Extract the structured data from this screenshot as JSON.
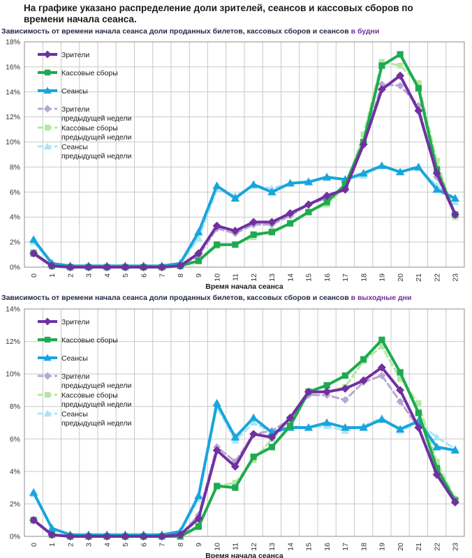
{
  "page": {
    "title": "На графике указано распределение доли зрителей, сеансов и кассовых сборов по времени начала сеанса."
  },
  "chart_data": [
    {
      "type": "line",
      "title": "Зависимость от времени начала сеанса доли проданных билетов, кассовых сборов и сеансов",
      "title_highlight": "в будни",
      "xlabel": "Время начала сеанса",
      "ylabel": "",
      "ylim": [
        0,
        18
      ],
      "yticks": [
        0,
        2,
        4,
        6,
        8,
        10,
        12,
        14,
        16,
        18
      ],
      "ytick_labels": [
        "0%",
        "2%",
        "4%",
        "6%",
        "8%",
        "10%",
        "12%",
        "14%",
        "16%",
        "18%"
      ],
      "categories": [
        "0",
        "1",
        "2",
        "3",
        "4",
        "5",
        "6",
        "7",
        "8",
        "9",
        "10",
        "11",
        "12",
        "13",
        "14",
        "15",
        "16",
        "17",
        "18",
        "19",
        "20",
        "21",
        "22",
        "23"
      ],
      "grid": true,
      "legend_position": "top-left",
      "series": [
        {
          "name": "Сеансы предыдущей недели",
          "label_lines": [
            "Сеансы",
            "предыдущей недели"
          ],
          "color": "#a9e4f7",
          "dashed": true,
          "marker": "triangle",
          "values": [
            2.0,
            0.3,
            0.1,
            0.1,
            0.1,
            0.1,
            0.1,
            0.1,
            0.3,
            2.3,
            6.2,
            5.7,
            6.5,
            6.3,
            6.7,
            6.9,
            7.1,
            7.0,
            7.3,
            8.1,
            7.6,
            7.9,
            6.5,
            5.2
          ]
        },
        {
          "name": "Кассовые сборы предыдущей недели",
          "label_lines": [
            "Кассовые сборы",
            "предыдущей недели"
          ],
          "color": "#b4e7a4",
          "dashed": true,
          "marker": "square",
          "values": [
            1.2,
            0.1,
            0.0,
            0.0,
            0.0,
            0.0,
            0.0,
            0.0,
            0.1,
            0.5,
            1.7,
            1.8,
            2.4,
            2.9,
            3.5,
            4.4,
            5.0,
            6.4,
            10.6,
            16.4,
            16.1,
            14.7,
            8.5,
            4.0
          ]
        },
        {
          "name": "Зрители предыдущей недели",
          "label_lines": [
            "Зрители",
            "предыдущей недели"
          ],
          "color": "#b8a6d4",
          "dashed": true,
          "marker": "diamond",
          "values": [
            1.1,
            0.1,
            0.0,
            0.0,
            0.0,
            0.0,
            0.0,
            0.0,
            0.1,
            0.9,
            3.1,
            2.7,
            3.4,
            3.4,
            4.1,
            5.0,
            5.5,
            6.3,
            9.9,
            14.6,
            14.5,
            12.9,
            7.2,
            4.2
          ]
        },
        {
          "name": "Сеансы",
          "label_lines": [
            "Сеансы"
          ],
          "color": "#19a5dc",
          "dashed": false,
          "marker": "triangle",
          "values": [
            2.2,
            0.3,
            0.1,
            0.1,
            0.1,
            0.1,
            0.1,
            0.1,
            0.3,
            2.8,
            6.5,
            5.5,
            6.6,
            6.0,
            6.7,
            6.8,
            7.2,
            7.0,
            7.5,
            8.1,
            7.6,
            8.0,
            6.2,
            5.5
          ]
        },
        {
          "name": "Кассовые сборы",
          "label_lines": [
            "Кассовые сборы"
          ],
          "color": "#1eaa50",
          "dashed": false,
          "marker": "square",
          "values": [
            1.1,
            0.1,
            0.0,
            0.0,
            0.0,
            0.0,
            0.0,
            0.0,
            0.1,
            0.5,
            1.8,
            1.8,
            2.6,
            2.8,
            3.5,
            4.4,
            5.2,
            6.6,
            10.0,
            16.1,
            17.0,
            14.3,
            7.8,
            4.2
          ]
        },
        {
          "name": "Зрители",
          "label_lines": [
            "Зрители"
          ],
          "color": "#7030a0",
          "dashed": false,
          "marker": "diamond",
          "values": [
            1.1,
            0.1,
            0.0,
            0.0,
            0.0,
            0.0,
            0.0,
            0.0,
            0.1,
            1.1,
            3.3,
            2.9,
            3.6,
            3.6,
            4.3,
            5.0,
            5.7,
            6.2,
            9.8,
            14.2,
            15.3,
            12.5,
            7.5,
            4.2
          ]
        }
      ]
    },
    {
      "type": "line",
      "title": "Зависимость от времени начала сеанса доли проданных билетов, кассовых сборов и сеансов",
      "title_highlight": "в выходные дни",
      "xlabel": "Время начала сеанса",
      "ylabel": "",
      "ylim": [
        0,
        14
      ],
      "yticks": [
        0,
        2,
        4,
        6,
        8,
        10,
        12,
        14
      ],
      "ytick_labels": [
        "0%",
        "2%",
        "4%",
        "6%",
        "8%",
        "10%",
        "12%",
        "14%"
      ],
      "categories": [
        "0",
        "1",
        "2",
        "3",
        "4",
        "5",
        "6",
        "7",
        "8",
        "9",
        "10",
        "11",
        "12",
        "13",
        "14",
        "15",
        "16",
        "17",
        "18",
        "19",
        "20",
        "21",
        "22",
        "23"
      ],
      "grid": true,
      "legend_position": "top-left",
      "series": [
        {
          "name": "Сеансы предыдущей недели",
          "label_lines": [
            "Сеансы",
            "предыдущей недели"
          ],
          "color": "#a9e4f7",
          "dashed": true,
          "marker": "triangle",
          "values": [
            2.6,
            0.5,
            0.1,
            0.1,
            0.1,
            0.1,
            0.1,
            0.1,
            0.3,
            2.3,
            8.0,
            5.9,
            7.0,
            6.4,
            6.8,
            6.7,
            6.8,
            6.5,
            6.8,
            7.3,
            6.5,
            7.0,
            6.1,
            5.4
          ]
        },
        {
          "name": "Кассовые сборы предыдущей недели",
          "label_lines": [
            "Кассовые сборы",
            "предыдущей недели"
          ],
          "color": "#b4e7a4",
          "dashed": true,
          "marker": "square",
          "values": [
            1.0,
            0.1,
            0.0,
            0.0,
            0.0,
            0.0,
            0.0,
            0.0,
            0.0,
            0.7,
            3.1,
            3.3,
            4.7,
            6.0,
            7.1,
            8.8,
            8.9,
            9.2,
            10.8,
            11.7,
            9.7,
            8.2,
            4.6,
            2.3
          ]
        },
        {
          "name": "Зрители предыдущей недели",
          "label_lines": [
            "Зрители",
            "предыдущей недели"
          ],
          "color": "#b8a6d4",
          "dashed": true,
          "marker": "diamond",
          "values": [
            1.0,
            0.1,
            0.0,
            0.0,
            0.0,
            0.0,
            0.0,
            0.0,
            0.1,
            1.3,
            5.5,
            4.6,
            6.3,
            6.5,
            7.2,
            8.7,
            8.7,
            8.4,
            9.5,
            9.9,
            8.3,
            6.7,
            4.0,
            2.3
          ]
        },
        {
          "name": "Сеансы",
          "label_lines": [
            "Сеансы"
          ],
          "color": "#19a5dc",
          "dashed": false,
          "marker": "triangle",
          "values": [
            2.7,
            0.5,
            0.1,
            0.1,
            0.1,
            0.1,
            0.1,
            0.1,
            0.3,
            2.5,
            8.2,
            6.1,
            7.3,
            6.4,
            6.7,
            6.7,
            7.0,
            6.7,
            6.7,
            7.2,
            6.6,
            7.1,
            5.5,
            5.3
          ]
        },
        {
          "name": "Кассовые сборы",
          "label_lines": [
            "Кассовые сборы"
          ],
          "color": "#1eaa50",
          "dashed": false,
          "marker": "square",
          "values": [
            1.0,
            0.1,
            0.0,
            0.0,
            0.0,
            0.0,
            0.0,
            0.0,
            0.0,
            0.6,
            3.1,
            3.0,
            4.9,
            5.5,
            6.8,
            8.9,
            9.3,
            9.9,
            10.9,
            12.1,
            10.1,
            7.6,
            4.2,
            2.2
          ]
        },
        {
          "name": "Зрители",
          "label_lines": [
            "Зрители"
          ],
          "color": "#7030a0",
          "dashed": false,
          "marker": "diamond",
          "values": [
            1.0,
            0.1,
            0.0,
            0.0,
            0.0,
            0.0,
            0.0,
            0.0,
            0.1,
            1.1,
            5.3,
            4.3,
            6.3,
            6.1,
            7.3,
            8.9,
            8.9,
            9.1,
            9.6,
            10.4,
            9.0,
            6.7,
            3.8,
            2.1
          ]
        }
      ]
    }
  ]
}
